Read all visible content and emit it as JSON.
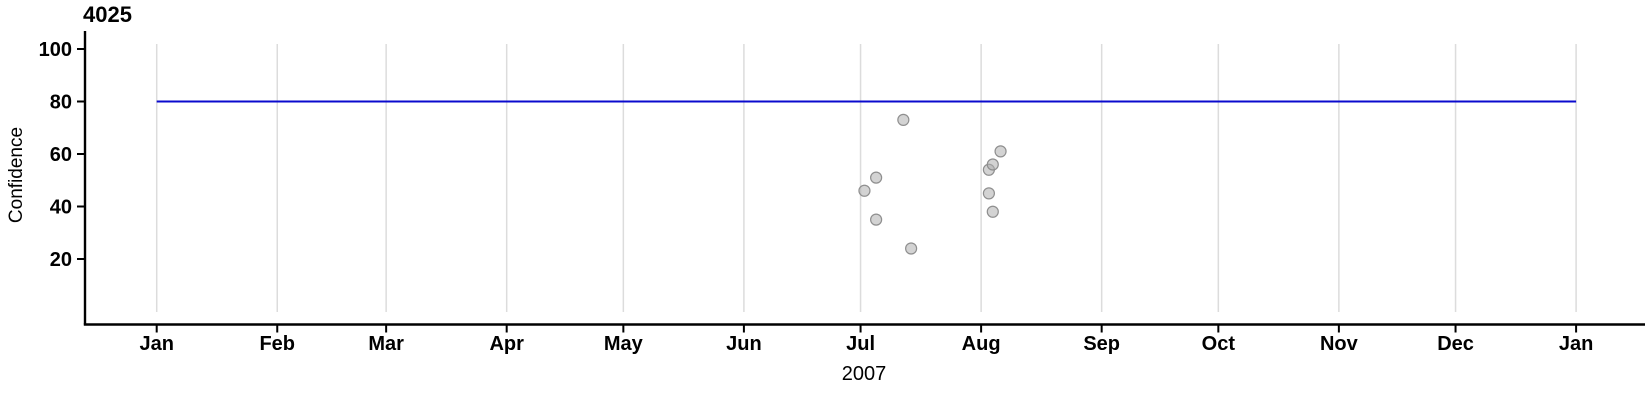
{
  "chart_data": {
    "type": "scatter",
    "title": "4025",
    "ylabel": "Confidence",
    "xlabel": "2007",
    "x_range": [
      "2007-01-01",
      "2008-01-01"
    ],
    "x_tick_labels": [
      "Jan",
      "Feb",
      "Mar",
      "Apr",
      "May",
      "Jun",
      "Jul",
      "Aug",
      "Sep",
      "Oct",
      "Nov",
      "Dec",
      "Jan"
    ],
    "y_ticks": [
      100,
      80,
      60,
      40,
      20
    ],
    "ylim": [
      -6,
      106
    ],
    "grid": "vertical month gridlines only",
    "legend": "none",
    "reference_line": {
      "value": 80,
      "color": "#0a0ace",
      "span": [
        "2007-01-01",
        "2008-01-01"
      ]
    },
    "points": [
      {
        "date": "2007-07-02",
        "confidence": 46
      },
      {
        "date": "2007-07-05",
        "confidence": 51
      },
      {
        "date": "2007-07-05",
        "confidence": 35
      },
      {
        "date": "2007-07-12",
        "confidence": 73
      },
      {
        "date": "2007-07-14",
        "confidence": 24
      },
      {
        "date": "2007-08-03",
        "confidence": 54
      },
      {
        "date": "2007-08-03",
        "confidence": 45
      },
      {
        "date": "2007-08-04",
        "confidence": 56
      },
      {
        "date": "2007-08-04",
        "confidence": 38
      },
      {
        "date": "2007-08-06",
        "confidence": 61
      }
    ],
    "colors": {
      "point_fill": "rgba(175,175,175,0.55)",
      "point_stroke": "#8f8f8f",
      "grid": "#dcdcdc",
      "axis": "#000000",
      "text": "#000000"
    }
  }
}
